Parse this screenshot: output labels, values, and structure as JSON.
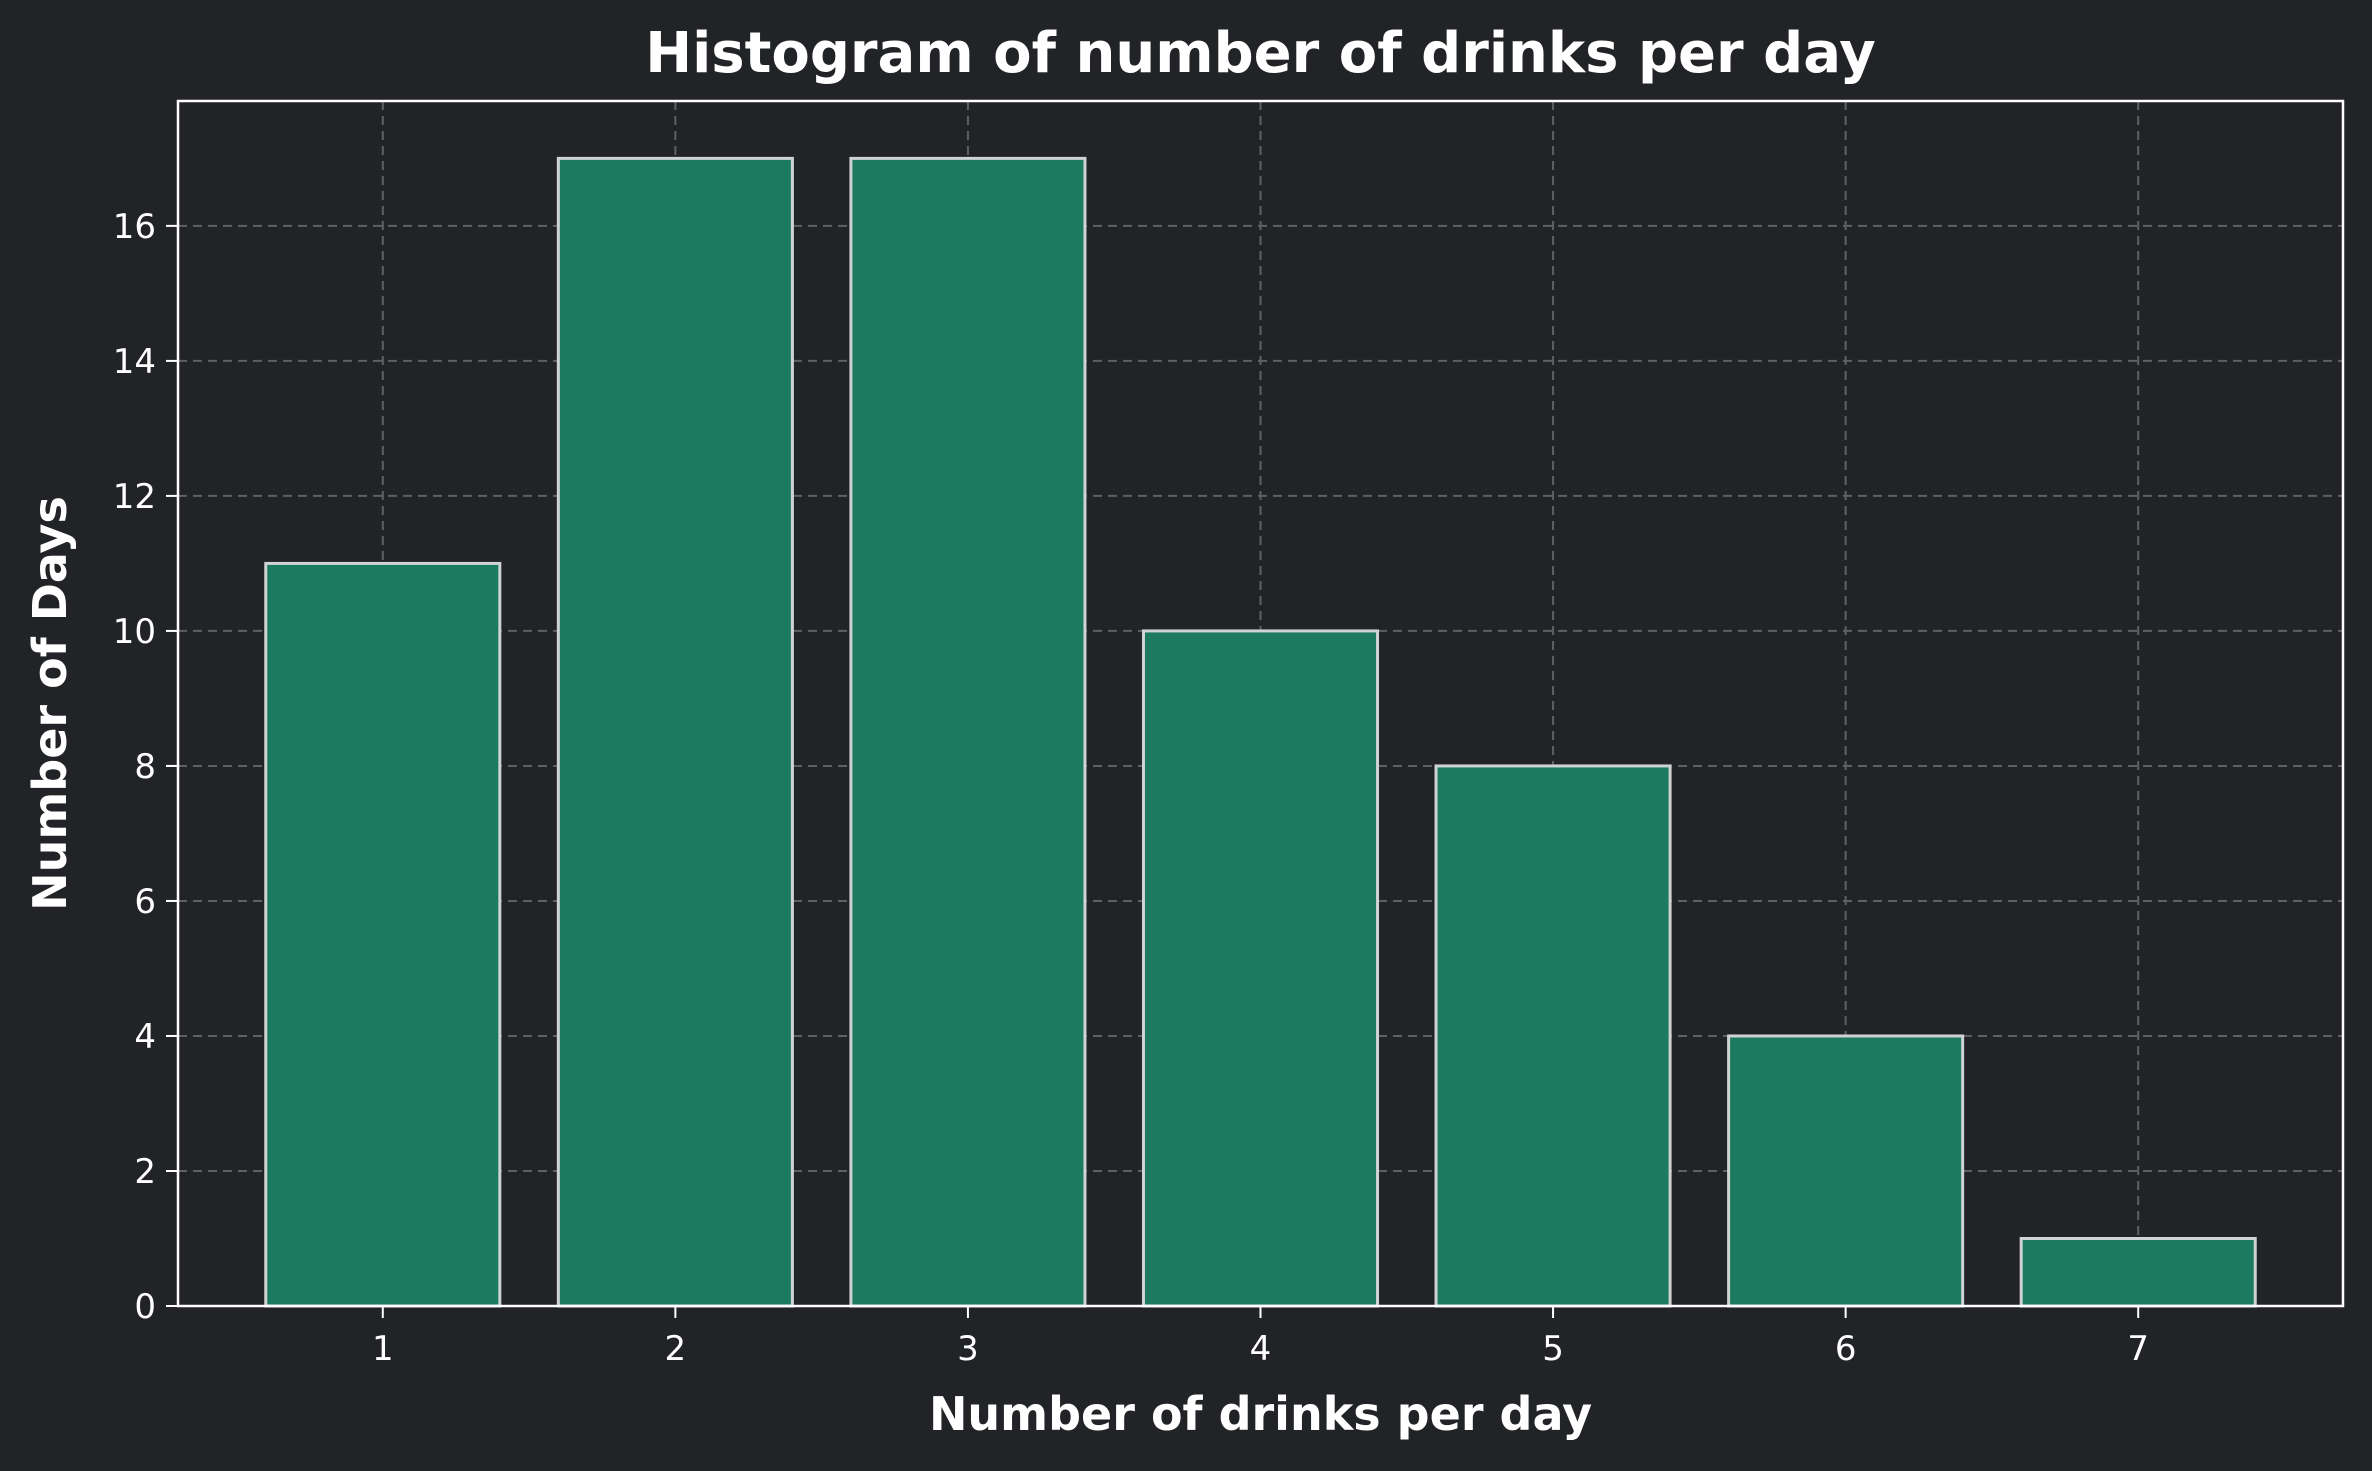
{
  "chart_data": {
    "type": "bar",
    "title": "Histogram of number of drinks per day",
    "xlabel": "Number of drinks per day",
    "ylabel": "Number of Days",
    "categories": [
      1,
      2,
      3,
      4,
      5,
      6,
      7
    ],
    "values": [
      11,
      17,
      17,
      10,
      8,
      4,
      1
    ],
    "x_ticks": [
      "1",
      "2",
      "3",
      "4",
      "5",
      "6",
      "7"
    ],
    "y_ticks": [
      0,
      2,
      4,
      6,
      8,
      10,
      12,
      14,
      16
    ],
    "xlim": [
      0.3,
      7.7
    ],
    "ylim": [
      0,
      17.85
    ],
    "bar_width": 0.8,
    "grid": true,
    "legend": "none",
    "colors": {
      "background": "#212327",
      "bar_fill": "#1c7a60",
      "bar_edge": "#cfd3d1",
      "grid": "#5f6063",
      "text": "#ffffff"
    }
  }
}
